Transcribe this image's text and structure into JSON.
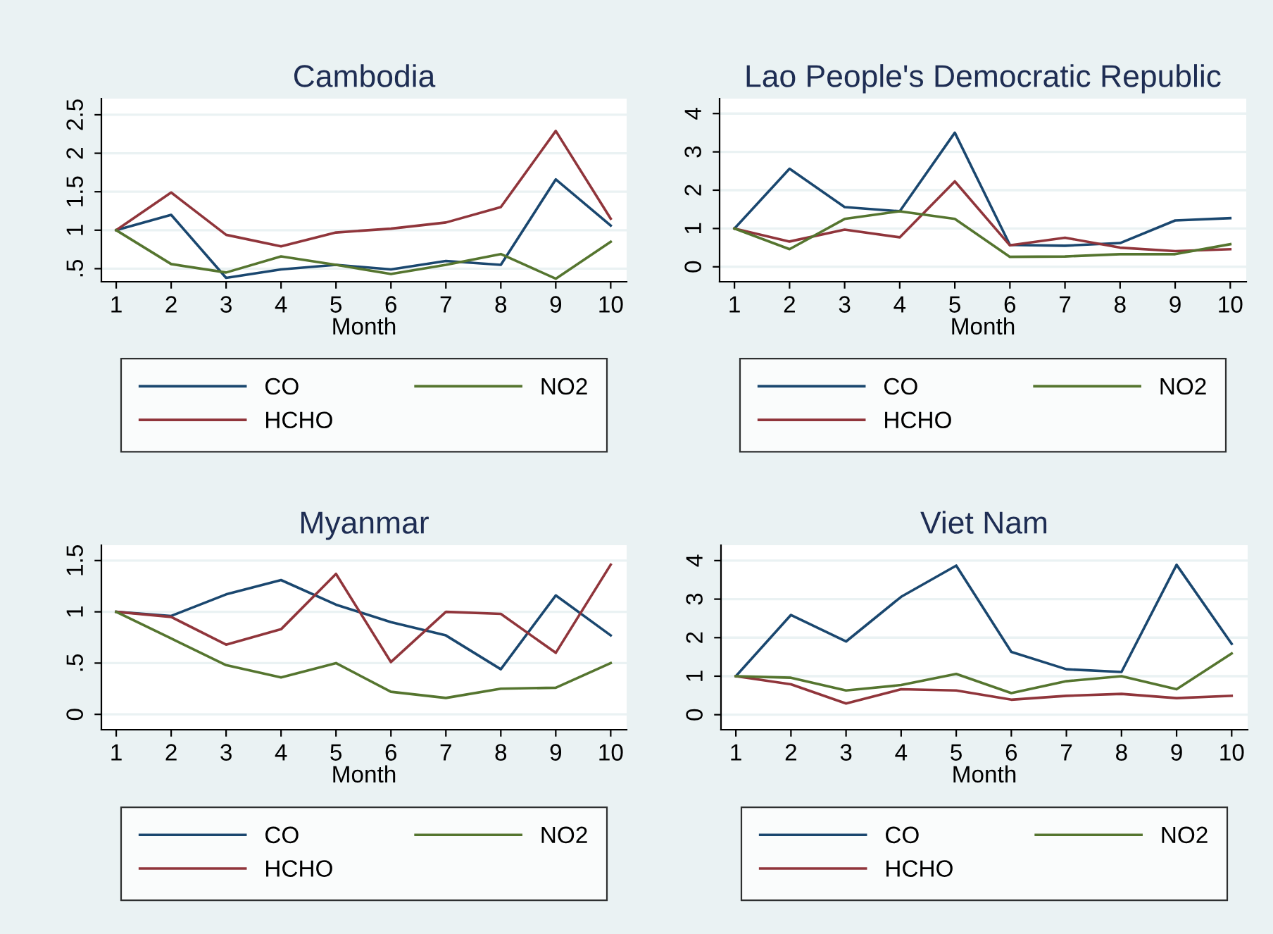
{
  "chart_data": [
    {
      "type": "line",
      "title": "Cambodia",
      "xlabel": "Month",
      "x": [
        1,
        2,
        3,
        4,
        5,
        6,
        7,
        8,
        9,
        10
      ],
      "xlim": [
        0.73,
        10.29
      ],
      "ylim": [
        0.33,
        2.71
      ],
      "xticks": [
        1,
        2,
        3,
        4,
        5,
        6,
        7,
        8,
        9,
        10
      ],
      "yticks": [
        {
          "value": 0.5,
          "label": ".5"
        },
        1,
        1.5,
        2,
        2.5
      ],
      "grid": "y",
      "legend": "bottom",
      "series": [
        {
          "name": "CO",
          "color": "#1a476f",
          "values": [
            1,
            1.2,
            0.38,
            0.49,
            0.55,
            0.49,
            0.6,
            0.55,
            1.66,
            1.06
          ]
        },
        {
          "name": "HCHO",
          "color": "#90353b",
          "values": [
            1,
            1.49,
            0.94,
            0.79,
            0.97,
            1.02,
            1.1,
            1.3,
            2.29,
            1.15
          ]
        },
        {
          "name": "NO2",
          "color": "#55752f",
          "values": [
            1,
            0.56,
            0.45,
            0.66,
            0.55,
            0.43,
            0.55,
            0.69,
            0.37,
            0.85
          ]
        }
      ]
    },
    {
      "type": "line",
      "title": "Lao People's Democratic Republic",
      "xlabel": "Month",
      "x": [
        1,
        2,
        3,
        4,
        5,
        6,
        7,
        8,
        9,
        10
      ],
      "xlim": [
        0.73,
        10.29
      ],
      "ylim": [
        -0.39,
        4.39
      ],
      "xticks": [
        1,
        2,
        3,
        4,
        5,
        6,
        7,
        8,
        9,
        10
      ],
      "yticks": [
        0,
        1,
        2,
        3,
        4
      ],
      "grid": "y",
      "legend": "bottom",
      "series": [
        {
          "name": "CO",
          "color": "#1a476f",
          "values": [
            1,
            2.56,
            1.56,
            1.45,
            3.5,
            0.57,
            0.55,
            0.62,
            1.21,
            1.27
          ]
        },
        {
          "name": "HCHO",
          "color": "#90353b",
          "values": [
            1,
            0.66,
            0.97,
            0.77,
            2.23,
            0.56,
            0.76,
            0.5,
            0.41,
            0.46
          ]
        },
        {
          "name": "NO2",
          "color": "#55752f",
          "values": [
            1,
            0.46,
            1.25,
            1.45,
            1.25,
            0.26,
            0.27,
            0.33,
            0.33,
            0.59
          ]
        }
      ]
    },
    {
      "type": "line",
      "title": "Myanmar",
      "xlabel": "Month",
      "x": [
        1,
        2,
        3,
        4,
        5,
        6,
        7,
        8,
        9,
        10
      ],
      "xlim": [
        0.73,
        10.29
      ],
      "ylim": [
        -0.15,
        1.65
      ],
      "xticks": [
        1,
        2,
        3,
        4,
        5,
        6,
        7,
        8,
        9,
        10
      ],
      "yticks": [
        0,
        {
          "value": 0.5,
          "label": ".5"
        },
        1,
        1.5
      ],
      "grid": "y",
      "legend": "bottom",
      "series": [
        {
          "name": "CO",
          "color": "#1a476f",
          "values": [
            1,
            0.96,
            1.17,
            1.31,
            1.07,
            0.9,
            0.77,
            0.44,
            1.16,
            0.77
          ]
        },
        {
          "name": "HCHO",
          "color": "#90353b",
          "values": [
            1,
            0.95,
            0.68,
            0.83,
            1.37,
            0.51,
            1.0,
            0.98,
            0.6,
            1.46
          ]
        },
        {
          "name": "NO2",
          "color": "#55752f",
          "values": [
            1,
            0.74,
            0.48,
            0.36,
            0.5,
            0.22,
            0.16,
            0.25,
            0.26,
            0.5
          ]
        }
      ]
    },
    {
      "type": "line",
      "title": "Viet Nam",
      "xlabel": "Month",
      "x": [
        1,
        2,
        3,
        4,
        5,
        6,
        7,
        8,
        9,
        10
      ],
      "xlim": [
        0.73,
        10.29
      ],
      "ylim": [
        -0.39,
        4.4
      ],
      "xticks": [
        1,
        2,
        3,
        4,
        5,
        6,
        7,
        8,
        9,
        10
      ],
      "yticks": [
        0,
        1,
        2,
        3,
        4
      ],
      "grid": "y",
      "legend": "bottom",
      "series": [
        {
          "name": "CO",
          "color": "#1a476f",
          "values": [
            1,
            2.59,
            1.9,
            3.06,
            3.87,
            1.63,
            1.18,
            1.11,
            3.89,
            1.84
          ]
        },
        {
          "name": "HCHO",
          "color": "#90353b",
          "values": [
            1,
            0.79,
            0.29,
            0.66,
            0.63,
            0.39,
            0.49,
            0.54,
            0.43,
            0.49
          ]
        },
        {
          "name": "NO2",
          "color": "#55752f",
          "values": [
            1,
            0.96,
            0.63,
            0.77,
            1.06,
            0.56,
            0.87,
            1.0,
            0.66,
            1.59
          ]
        }
      ]
    }
  ]
}
